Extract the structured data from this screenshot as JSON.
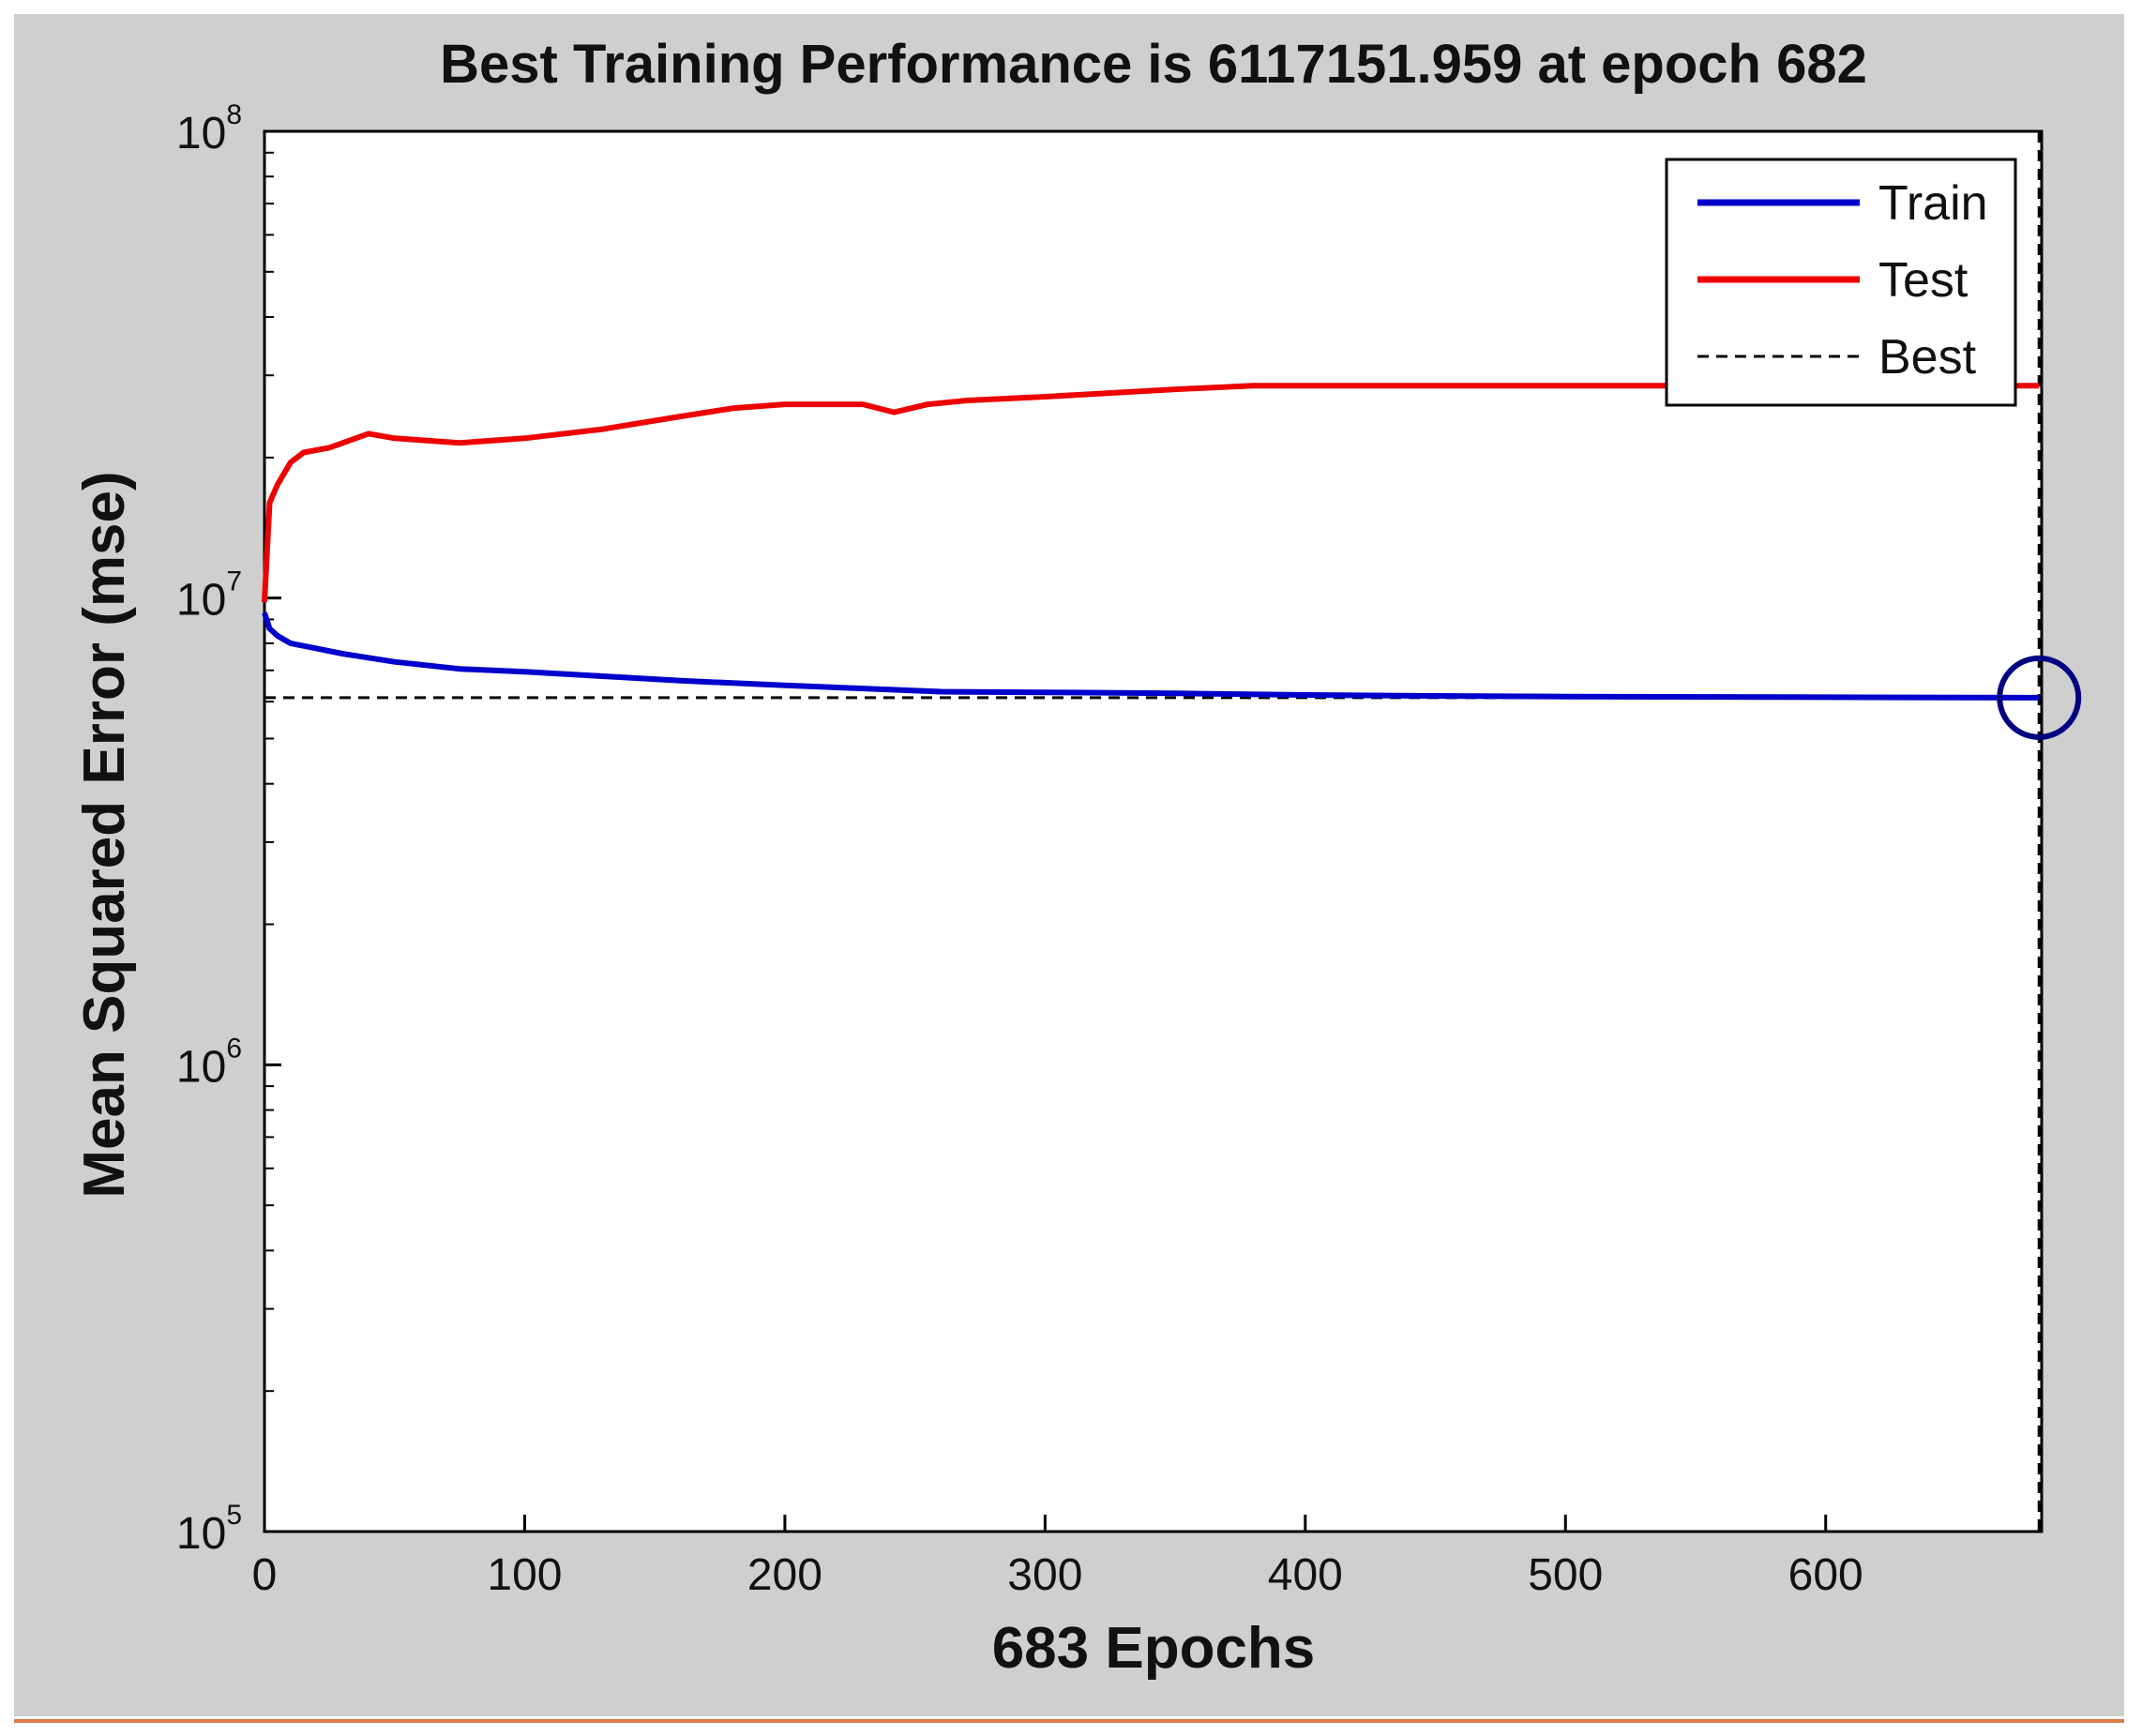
{
  "chart_data": {
    "type": "line",
    "title": "Best Training Performance is 6117151.959 at epoch 682",
    "xlabel": "683 Epochs",
    "ylabel": "Mean Squared Error  (mse)",
    "xlim": [
      0,
      683
    ],
    "ylim": [
      100000,
      100000000
    ],
    "yscale": "log",
    "xticks": [
      "0",
      "100",
      "200",
      "300",
      "400",
      "500",
      "600"
    ],
    "yticks": [
      {
        "base": "10",
        "exp": "5"
      },
      {
        "base": "10",
        "exp": "6"
      },
      {
        "base": "10",
        "exp": "7"
      },
      {
        "base": "10",
        "exp": "8"
      }
    ],
    "legend_position": "top-right",
    "series": [
      {
        "name": "Train",
        "color": "#0000cc",
        "x": [
          0,
          2,
          5,
          10,
          20,
          30,
          50,
          75,
          100,
          130,
          160,
          200,
          230,
          260,
          300,
          350,
          400,
          450,
          500,
          600,
          682
        ],
        "y": [
          9300000,
          8600000,
          8300000,
          8000000,
          7800000,
          7600000,
          7300000,
          7050000,
          6950000,
          6800000,
          6650000,
          6500000,
          6400000,
          6300000,
          6280000,
          6250000,
          6200000,
          6170000,
          6150000,
          6130000,
          6117152
        ]
      },
      {
        "name": "Test",
        "color": "#ee0000",
        "x": [
          0,
          2,
          5,
          10,
          15,
          25,
          40,
          50,
          75,
          100,
          130,
          160,
          180,
          200,
          230,
          242,
          255,
          270,
          300,
          350,
          380,
          450,
          550,
          682
        ],
        "y": [
          9800000,
          16000000,
          17500000,
          19500000,
          20500000,
          21000000,
          22500000,
          22000000,
          21500000,
          22000000,
          23000000,
          24500000,
          25500000,
          26000000,
          26000000,
          25000000,
          26000000,
          26500000,
          27000000,
          28000000,
          28500000,
          28500000,
          28500000,
          28500000
        ]
      }
    ],
    "best": {
      "name": "Best",
      "epoch": 682,
      "value": 6117151.959,
      "color": "#000080"
    }
  }
}
